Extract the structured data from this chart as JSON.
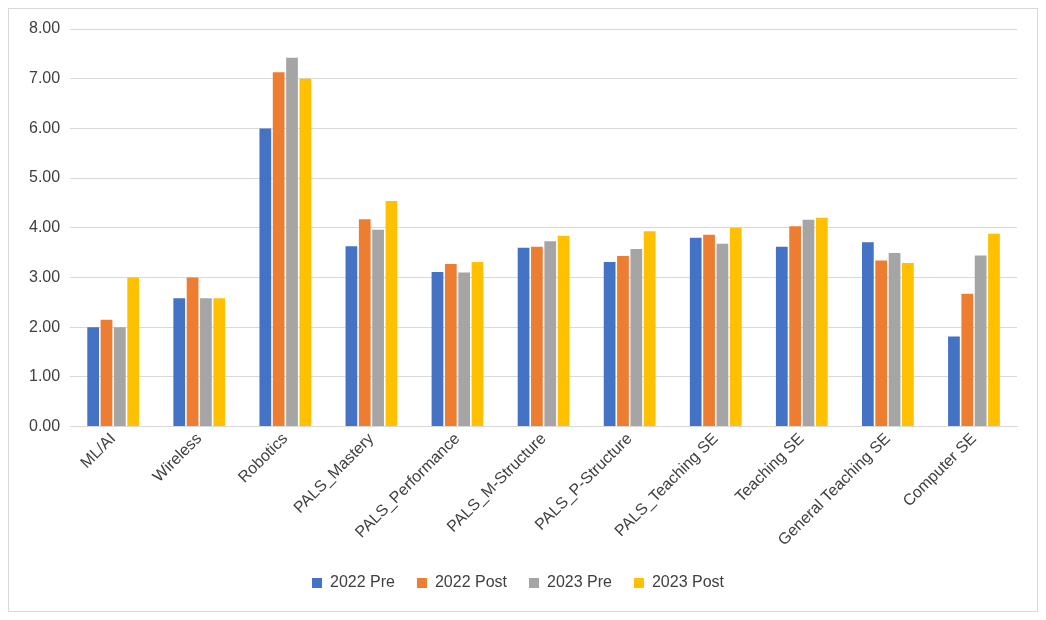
{
  "chart_data": {
    "type": "bar",
    "categories": [
      "ML/AI",
      "Wireless",
      "Robotics",
      "PALS_Mastery",
      "PALS_Performance",
      "PALS_M-Structure",
      "PALS_P-Structure",
      "PALS_Teaching SE",
      "Teaching SE",
      "General Teaching SE",
      "Computer SE"
    ],
    "series": [
      {
        "name": "2022 Pre",
        "color": "#4472c4",
        "values": [
          2.0,
          2.58,
          6.0,
          3.63,
          3.11,
          3.6,
          3.31,
          3.8,
          3.62,
          3.71,
          1.81
        ]
      },
      {
        "name": "2022 Post",
        "color": "#ed7d31",
        "values": [
          2.15,
          3.0,
          7.13,
          4.17,
          3.27,
          3.62,
          3.43,
          3.86,
          4.03,
          3.34,
          2.67
        ]
      },
      {
        "name": "2023 Pre",
        "color": "#a5a5a5",
        "values": [
          2.0,
          2.58,
          7.42,
          3.96,
          3.1,
          3.73,
          3.57,
          3.68,
          4.16,
          3.49,
          3.44
        ]
      },
      {
        "name": "2023 Post",
        "color": "#ffc000",
        "values": [
          3.0,
          2.58,
          7.0,
          4.54,
          3.31,
          3.84,
          3.93,
          4.0,
          4.2,
          3.29,
          3.88
        ]
      }
    ],
    "ylim": [
      0,
      8
    ],
    "yticks": [
      {
        "value": 0,
        "label": "0.00"
      },
      {
        "value": 1,
        "label": "1.00"
      },
      {
        "value": 2,
        "label": "2.00"
      },
      {
        "value": 3,
        "label": "3.00"
      },
      {
        "value": 4,
        "label": "4.00"
      },
      {
        "value": 5,
        "label": "5.00"
      },
      {
        "value": 6,
        "label": "6.00"
      },
      {
        "value": 7,
        "label": "7.00"
      },
      {
        "value": 8,
        "label": "8.00"
      }
    ],
    "grid": "y",
    "legend": "bottom"
  }
}
